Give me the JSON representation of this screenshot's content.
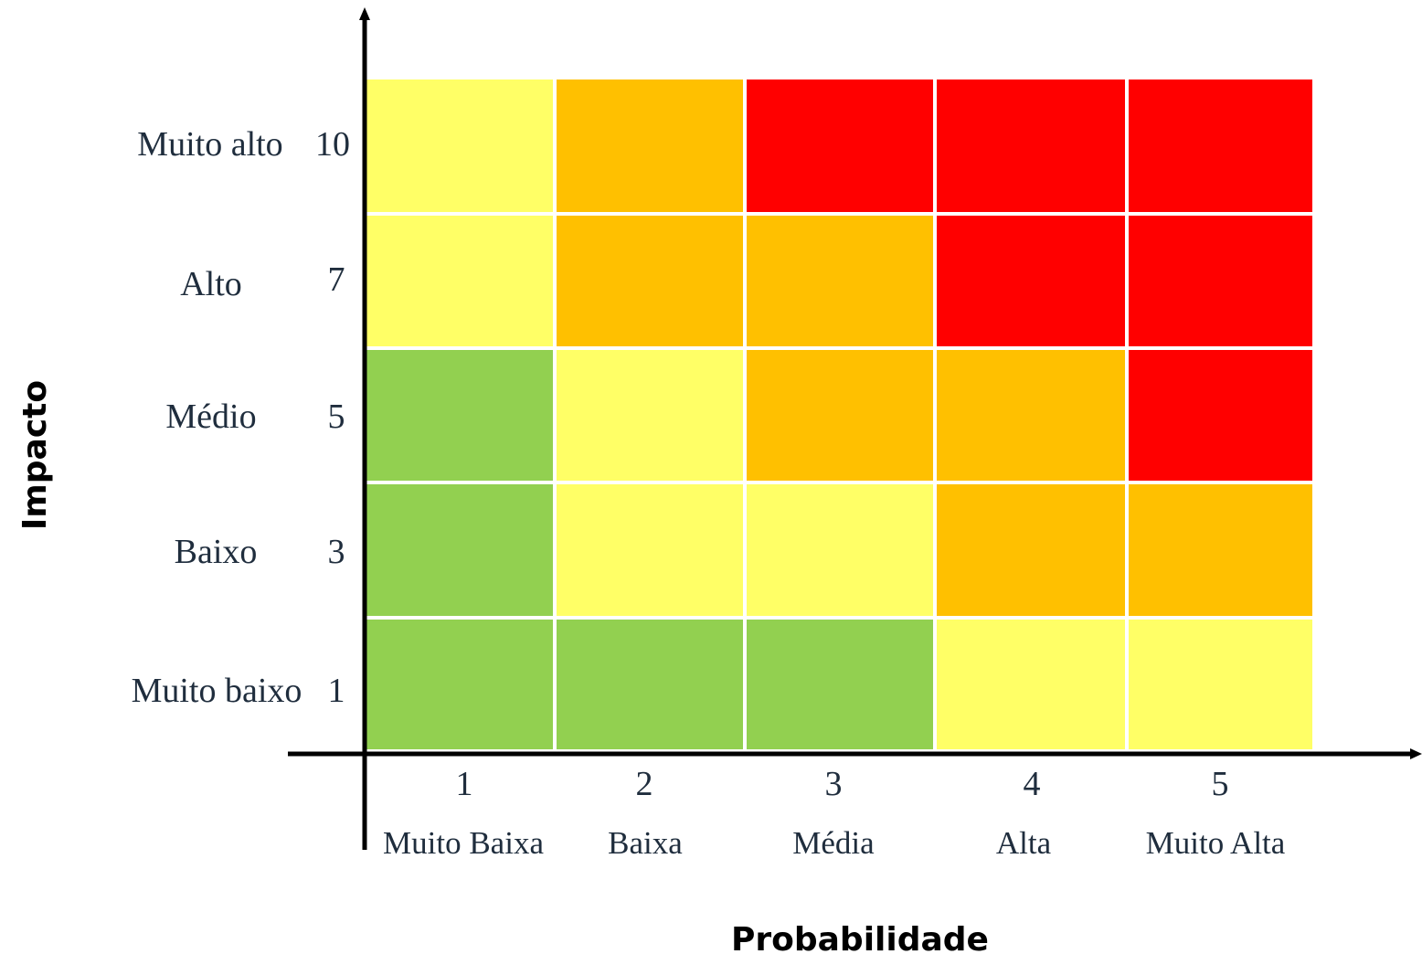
{
  "chart_data": {
    "type": "heatmap",
    "title": "",
    "xlabel": "Probabilidade",
    "ylabel": "Impacto",
    "x": {
      "values": [
        "1",
        "2",
        "3",
        "4",
        "5"
      ],
      "labels": [
        "Muito Baixa",
        "Baixa",
        "Média",
        "Alta",
        "Muito Alta"
      ]
    },
    "y": {
      "values": [
        "10",
        "7",
        "5",
        "3",
        "1"
      ],
      "labels": [
        "Muito alto",
        "Alto",
        "Médio",
        "Baixo",
        "Muito baixo"
      ]
    },
    "levels": {
      "green": "#92d050",
      "yellow": "#ffff66",
      "orange": "#ffc000",
      "red": "#ff0000"
    },
    "cells": [
      [
        "yellow",
        "orange",
        "red",
        "red",
        "red"
      ],
      [
        "yellow",
        "orange",
        "orange",
        "red",
        "red"
      ],
      [
        "green",
        "yellow",
        "orange",
        "orange",
        "red"
      ],
      [
        "green",
        "yellow",
        "yellow",
        "orange",
        "orange"
      ],
      [
        "green",
        "green",
        "green",
        "yellow",
        "yellow"
      ]
    ],
    "grid": true,
    "legend": "none"
  }
}
